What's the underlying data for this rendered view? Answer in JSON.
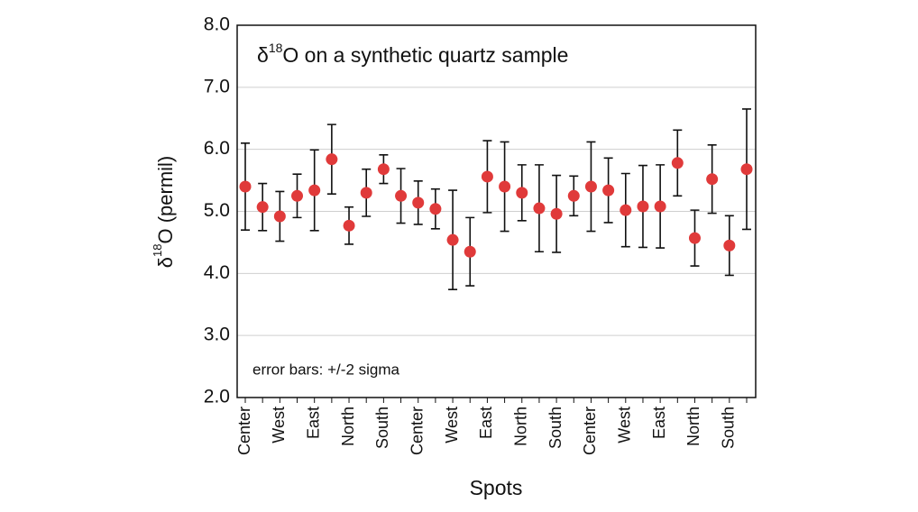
{
  "chart_data": {
    "type": "errorbar",
    "title": {
      "symbol": "δ",
      "superscript": "18",
      "rest": "O on a synthetic quartz sample"
    },
    "y_label": {
      "symbol": "δ",
      "superscript": "18",
      "rest": "O (permil)"
    },
    "x_label": "Spots",
    "annotation": "error bars: +/-2 sigma",
    "categories": [
      "Center",
      null,
      "West",
      null,
      "East",
      null,
      "North",
      null,
      "South",
      null,
      "Center",
      null,
      "West",
      null,
      "East",
      null,
      "North",
      null,
      "South",
      null,
      "Center",
      null,
      "West",
      null,
      "East",
      null,
      "North",
      null,
      "South",
      null
    ],
    "values": [
      5.4,
      5.07,
      4.92,
      5.25,
      5.34,
      5.84,
      4.77,
      5.3,
      5.68,
      5.25,
      5.14,
      5.04,
      4.54,
      4.35,
      5.56,
      5.4,
      5.3,
      5.05,
      4.96,
      5.25,
      5.4,
      5.34,
      5.02,
      5.08,
      5.08,
      5.78,
      4.57,
      5.52,
      4.45,
      5.68
    ],
    "errors": [
      0.7,
      0.38,
      0.4,
      0.35,
      0.65,
      0.56,
      0.3,
      0.38,
      0.23,
      0.44,
      0.35,
      0.32,
      0.8,
      0.55,
      0.58,
      0.72,
      0.45,
      0.7,
      0.62,
      0.32,
      0.72,
      0.52,
      0.59,
      0.66,
      0.67,
      0.53,
      0.45,
      0.55,
      0.48,
      0.97
    ],
    "color": "#e03a3a",
    "error_color": "#111111",
    "ylim": [
      2.0,
      8.0
    ],
    "yticks": [
      {
        "value": 2,
        "label": "2.0"
      },
      {
        "value": 3,
        "label": "3.0"
      },
      {
        "value": 4,
        "label": "4.0"
      },
      {
        "value": 5,
        "label": "5.0"
      },
      {
        "value": 6,
        "label": "6.0"
      },
      {
        "value": 7,
        "label": "7.0"
      },
      {
        "value": 8,
        "label": "8.0"
      }
    ],
    "grid": true
  }
}
